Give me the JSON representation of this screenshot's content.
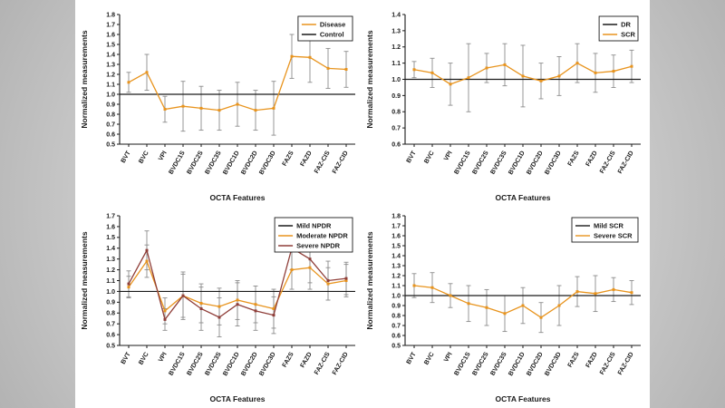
{
  "style": {
    "page_background": "#c6c6c6",
    "figure_background": "#ffffff",
    "error_color": "#8c8c8c",
    "axis_color": "#1a1a1a"
  },
  "chart_data": [
    {
      "type": "line",
      "title": "",
      "xlabel": "OCTA Features",
      "ylabel": "Normalized measurements",
      "ylim": [
        0.5,
        1.8
      ],
      "ytick_step": 0.1,
      "grid": false,
      "legend_position": "top-right",
      "categories": [
        "BVT",
        "BVC",
        "VPI",
        "BVDC1S",
        "BVDC2S",
        "BVDC3S",
        "BVDC1D",
        "BVDC2D",
        "BVDC3D",
        "FAZS",
        "FAZD",
        "FAZ-CIS",
        "FAZ-CID"
      ],
      "series": [
        {
          "name": "Disease",
          "color": "#E8941E",
          "flat": false,
          "values": [
            1.12,
            1.22,
            0.85,
            0.88,
            0.86,
            0.84,
            0.9,
            0.84,
            0.86,
            1.38,
            1.37,
            1.26,
            1.25
          ],
          "errors": [
            0.1,
            0.18,
            0.13,
            0.25,
            0.22,
            0.2,
            0.22,
            0.2,
            0.27,
            0.22,
            0.25,
            0.2,
            0.18
          ]
        },
        {
          "name": "Control",
          "color": "#1a1a1a",
          "flat": true,
          "value": 1.0
        }
      ]
    },
    {
      "type": "line",
      "title": "",
      "xlabel": "OCTA Features",
      "ylabel": "Normalized measurements",
      "ylim": [
        0.6,
        1.4
      ],
      "ytick_step": 0.1,
      "grid": false,
      "legend_position": "top-right",
      "categories": [
        "BVT",
        "BVC",
        "VPI",
        "BVDC1S",
        "BVDC2S",
        "BVDC3S",
        "BVDC1D",
        "BVDC2D",
        "BVDC3D",
        "FAZS",
        "FAZD",
        "FAZ-CIS",
        "FAZ-CID"
      ],
      "series": [
        {
          "name": "DR",
          "color": "#1a1a1a",
          "flat": true,
          "value": 1.0
        },
        {
          "name": "SCR",
          "color": "#E8941E",
          "flat": false,
          "values": [
            1.06,
            1.04,
            0.97,
            1.01,
            1.07,
            1.09,
            1.02,
            0.99,
            1.02,
            1.1,
            1.04,
            1.05,
            1.08
          ],
          "errors": [
            0.05,
            0.09,
            0.13,
            0.21,
            0.09,
            0.13,
            0.19,
            0.11,
            0.12,
            0.12,
            0.12,
            0.1,
            0.1
          ]
        }
      ]
    },
    {
      "type": "line",
      "title": "",
      "xlabel": "OCTA Features",
      "ylabel": "Normalized measurements",
      "ylim": [
        0.5,
        1.7
      ],
      "ytick_step": 0.1,
      "grid": false,
      "legend_position": "top-right",
      "categories": [
        "BVT",
        "BVC",
        "VPI",
        "BVDC1S",
        "BVDC2S",
        "BVDC3S",
        "BVDC1D",
        "BVDC2D",
        "BVDC3D",
        "FAZS",
        "FAZD",
        "FAZ-CIS",
        "FAZ-CID"
      ],
      "series": [
        {
          "name": "Mild NPDR",
          "color": "#1a1a1a",
          "flat": true,
          "value": 1.0
        },
        {
          "name": "Moderate NPDR",
          "color": "#E8941E",
          "flat": false,
          "values": [
            1.04,
            1.28,
            0.82,
            0.96,
            0.89,
            0.86,
            0.92,
            0.88,
            0.84,
            1.2,
            1.22,
            1.07,
            1.1
          ],
          "errors": [
            0.1,
            0.15,
            0.12,
            0.2,
            0.18,
            0.17,
            0.18,
            0.17,
            0.18,
            0.18,
            0.2,
            0.15,
            0.15
          ]
        },
        {
          "name": "Severe NPDR",
          "color": "#8F3E39",
          "flat": false,
          "values": [
            1.07,
            1.38,
            0.74,
            0.96,
            0.84,
            0.76,
            0.88,
            0.82,
            0.78,
            1.4,
            1.3,
            1.1,
            1.12
          ],
          "errors": [
            0.12,
            0.18,
            0.1,
            0.22,
            0.2,
            0.18,
            0.2,
            0.18,
            0.17,
            0.2,
            0.22,
            0.18,
            0.15
          ]
        }
      ]
    },
    {
      "type": "line",
      "title": "",
      "xlabel": "OCTA Features",
      "ylabel": "Normalized measurements",
      "ylim": [
        0.5,
        1.8
      ],
      "ytick_step": 0.1,
      "grid": false,
      "legend_position": "top-right",
      "categories": [
        "BVT",
        "BVC",
        "VPI",
        "BVDC1S",
        "BVDC2S",
        "BVDC3S",
        "BVDC1D",
        "BVDC2D",
        "BVDC3D",
        "FAZS",
        "FAZD",
        "FAZ-CIS",
        "FAZ-CID"
      ],
      "series": [
        {
          "name": "Mild SCR",
          "color": "#1a1a1a",
          "flat": true,
          "value": 1.0
        },
        {
          "name": "Severe SCR",
          "color": "#E8941E",
          "flat": false,
          "values": [
            1.1,
            1.08,
            1.0,
            0.92,
            0.88,
            0.82,
            0.9,
            0.78,
            0.9,
            1.04,
            1.02,
            1.06,
            1.03
          ],
          "errors": [
            0.12,
            0.15,
            0.12,
            0.18,
            0.18,
            0.18,
            0.18,
            0.15,
            0.2,
            0.15,
            0.18,
            0.12,
            0.12
          ]
        }
      ]
    }
  ]
}
